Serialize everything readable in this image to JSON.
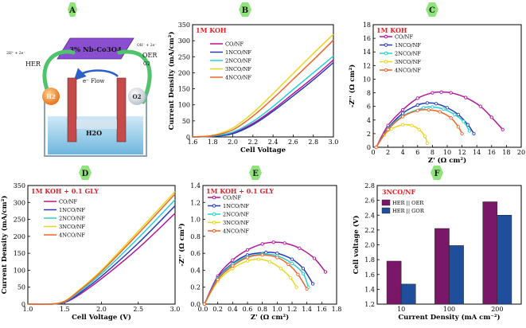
{
  "colors": {
    "series": [
      "#b5139b",
      "#283db5",
      "#25cfd6",
      "#e9d61c",
      "#f0642a"
    ],
    "hexagon": "#8ee37a",
    "bar_oer": "#7b1768",
    "bar_gor": "#1f4f9c",
    "condition": "#e8202a"
  },
  "series_names": [
    "CO/NF",
    "1NCO/NF",
    "2NCO/NF",
    "3NCO/NF",
    "4NCO/NF"
  ],
  "panel_labels": [
    "A",
    "B",
    "C",
    "D",
    "E",
    "F"
  ],
  "schematic": {
    "catalyst": "3% Nb-Co3O4",
    "her": "HER",
    "oer": "OER",
    "eflow": "e⁻ Flow",
    "h2": "H2",
    "o2": "O2",
    "water": "H2O",
    "her_eq": "2H⁺ + 2e⁻",
    "oer_eq": "OH⁻ + 2e⁻",
    "o2_out": "O2"
  },
  "chart_data": [
    {
      "id": "B",
      "type": "line",
      "condition": "1M KOH",
      "xlabel": "Cell Voltage",
      "ylabel": "Current Density (mA/cm²)",
      "xlim": [
        1.6,
        3.0
      ],
      "ylim": [
        0,
        350
      ],
      "xticks": [
        "1.6",
        "1.8",
        "2.0",
        "2.2",
        "2.4",
        "2.6",
        "2.8",
        "3.0"
      ],
      "yticks": [
        "0",
        "50",
        "100",
        "150",
        "200",
        "250",
        "300",
        "350"
      ],
      "series": [
        {
          "name": "CO/NF",
          "x": [
            1.6,
            1.8,
            2.0,
            2.2,
            2.4,
            2.6,
            2.8,
            3.0
          ],
          "y": [
            0,
            2,
            12,
            42,
            85,
            135,
            185,
            240
          ]
        },
        {
          "name": "1NCO/NF",
          "x": [
            1.6,
            1.8,
            2.0,
            2.2,
            2.4,
            2.6,
            2.8,
            3.0
          ],
          "y": [
            0,
            2,
            10,
            38,
            80,
            128,
            178,
            232
          ]
        },
        {
          "name": "2NCO/NF",
          "x": [
            1.6,
            1.8,
            2.0,
            2.2,
            2.4,
            2.6,
            2.8,
            3.0
          ],
          "y": [
            0,
            3,
            15,
            48,
            95,
            148,
            200,
            252
          ]
        },
        {
          "name": "3NCO/NF",
          "x": [
            1.6,
            1.8,
            2.0,
            2.2,
            2.4,
            2.6,
            2.8,
            3.0
          ],
          "y": [
            0,
            5,
            28,
            75,
            135,
            198,
            260,
            320
          ]
        },
        {
          "name": "4NCO/NF",
          "x": [
            1.6,
            1.8,
            2.0,
            2.2,
            2.4,
            2.6,
            2.8,
            3.0
          ],
          "y": [
            0,
            4,
            22,
            65,
            120,
            180,
            240,
            302
          ]
        }
      ]
    },
    {
      "id": "C",
      "type": "scatter",
      "condition": "1M KOH",
      "xlabel": "Z' (Ω cm²)",
      "ylabel": "-Z'' (Ω cm²)",
      "xlim": [
        0,
        20
      ],
      "ylim": [
        0,
        18
      ],
      "xticks": [
        "0",
        "2",
        "4",
        "6",
        "8",
        "10",
        "12",
        "14",
        "16",
        "18",
        "20"
      ],
      "yticks": [
        "0",
        "2",
        "4",
        "6",
        "8",
        "10",
        "12",
        "14",
        "16",
        "18"
      ],
      "series": [
        {
          "name": "CO/NF",
          "x": [
            0.4,
            2,
            4,
            6,
            8,
            9.2,
            10.5,
            12.5,
            14.5,
            16,
            17.5
          ],
          "y": [
            0,
            3.2,
            5.5,
            7.2,
            8.0,
            8.1,
            8.0,
            7.3,
            6.0,
            4.4,
            2.6
          ]
        },
        {
          "name": "1NCO/NF",
          "x": [
            0.4,
            2,
            4,
            6,
            7.3,
            8.5,
            10,
            11.5,
            12.8,
            13.6
          ],
          "y": [
            0,
            2.8,
            5.0,
            6.2,
            6.5,
            6.4,
            5.8,
            4.8,
            3.3,
            2.0
          ]
        },
        {
          "name": "2NCO/NF",
          "x": [
            0.4,
            2,
            4,
            6.8,
            8,
            9.5,
            11,
            12.2,
            13.0
          ],
          "y": [
            0,
            2.7,
            4.6,
            5.8,
            5.9,
            5.6,
            4.8,
            3.8,
            2.4
          ]
        },
        {
          "name": "3NCO/NF",
          "x": [
            0.4,
            1.5,
            2.5,
            4,
            5.2,
            6.2,
            7.0,
            7.3
          ],
          "y": [
            0,
            1.8,
            2.7,
            3.3,
            3.2,
            2.6,
            1.6,
            0.6
          ]
        },
        {
          "name": "4NCO/NF",
          "x": [
            0.4,
            2,
            4,
            6,
            7.5,
            9,
            10.5,
            11.5,
            12.0
          ],
          "y": [
            0,
            2.6,
            4.5,
            5.4,
            5.5,
            5.2,
            4.3,
            3.0,
            2.0
          ]
        }
      ]
    },
    {
      "id": "D",
      "type": "line",
      "condition": "1M KOH + 0.1 GLY",
      "xlabel": "Cell Voltage (V)",
      "ylabel": "Current Density (mA/cm²)",
      "xlim": [
        1.0,
        3.0
      ],
      "ylim": [
        0,
        350
      ],
      "xticks": [
        "1.0",
        "1.5",
        "2.0",
        "2.5",
        "3.0"
      ],
      "yticks": [
        "0",
        "50",
        "100",
        "150",
        "200",
        "250",
        "300",
        "350"
      ],
      "series": [
        {
          "name": "CO/NF",
          "x": [
            1.0,
            1.3,
            1.5,
            1.7,
            2.0,
            2.5,
            3.0
          ],
          "y": [
            0,
            0,
            5,
            28,
            75,
            165,
            268
          ]
        },
        {
          "name": "1NCO/NF",
          "x": [
            1.0,
            1.3,
            1.5,
            1.7,
            2.0,
            2.5,
            3.0
          ],
          "y": [
            0,
            0,
            6,
            32,
            82,
            180,
            290
          ]
        },
        {
          "name": "2NCO/NF",
          "x": [
            1.0,
            1.3,
            1.5,
            1.7,
            2.0,
            2.5,
            3.0
          ],
          "y": [
            0,
            0,
            7,
            36,
            90,
            195,
            308
          ]
        },
        {
          "name": "3NCO/NF",
          "x": [
            1.0,
            1.3,
            1.5,
            1.7,
            2.0,
            2.5,
            3.0
          ],
          "y": [
            0,
            0,
            9,
            42,
            100,
            215,
            332
          ]
        },
        {
          "name": "4NCO/NF",
          "x": [
            1.0,
            1.3,
            1.5,
            1.7,
            2.0,
            2.5,
            3.0
          ],
          "y": [
            0,
            0,
            8,
            40,
            96,
            208,
            325
          ]
        }
      ]
    },
    {
      "id": "E",
      "type": "scatter",
      "condition": "1M KOH + 0.1 GLY",
      "xlabel": "Z' (Ω cm²)",
      "ylabel": "-Z'' (Ω cm²)",
      "xlim": [
        0,
        1.8
      ],
      "ylim": [
        0,
        1.4
      ],
      "xticks": [
        "0.0",
        "0.2",
        "0.4",
        "0.6",
        "0.8",
        "1.0",
        "1.2",
        "1.4",
        "1.6",
        "1.8"
      ],
      "yticks": [
        "0.0",
        "0.2",
        "0.4",
        "0.6",
        "0.8",
        "1.0",
        "1.2",
        "1.4"
      ],
      "series": [
        {
          "name": "CO/NF",
          "x": [
            0.02,
            0.2,
            0.4,
            0.6,
            0.8,
            0.95,
            1.1,
            1.3,
            1.5,
            1.65
          ],
          "y": [
            0,
            0.33,
            0.52,
            0.64,
            0.71,
            0.73,
            0.72,
            0.66,
            0.54,
            0.38
          ]
        },
        {
          "name": "1NCO/NF",
          "x": [
            0.02,
            0.2,
            0.4,
            0.6,
            0.85,
            1.0,
            1.2,
            1.35,
            1.48
          ],
          "y": [
            0,
            0.31,
            0.48,
            0.58,
            0.61,
            0.6,
            0.53,
            0.42,
            0.24
          ]
        },
        {
          "name": "2NCO/NF",
          "x": [
            0.02,
            0.2,
            0.4,
            0.6,
            0.8,
            1.0,
            1.2,
            1.35,
            1.42
          ],
          "y": [
            0,
            0.3,
            0.47,
            0.56,
            0.59,
            0.57,
            0.48,
            0.36,
            0.2
          ]
        },
        {
          "name": "3NCO/NF",
          "x": [
            0.02,
            0.2,
            0.4,
            0.6,
            0.75,
            0.9,
            1.05,
            1.18,
            1.26
          ],
          "y": [
            0,
            0.27,
            0.42,
            0.51,
            0.53,
            0.5,
            0.42,
            0.31,
            0.2
          ]
        },
        {
          "name": "4NCO/NF",
          "x": [
            0.02,
            0.2,
            0.4,
            0.6,
            0.8,
            1.0,
            1.15,
            1.28,
            1.4
          ],
          "y": [
            0,
            0.29,
            0.45,
            0.55,
            0.58,
            0.55,
            0.47,
            0.35,
            0.18
          ]
        }
      ]
    },
    {
      "id": "F",
      "type": "bar",
      "condition": "3NCO/NF",
      "xlabel": "Current Density (mA cm⁻²)",
      "ylabel": "Cell voltage (V)",
      "ylim": [
        1.2,
        2.8
      ],
      "yticks": [
        "1.2",
        "1.4",
        "1.6",
        "1.8",
        "2.0",
        "2.2",
        "2.4",
        "2.6",
        "2.8"
      ],
      "categories": [
        "10",
        "100",
        "200"
      ],
      "series": [
        {
          "name": "HER || OER",
          "values": [
            1.78,
            2.22,
            2.58
          ]
        },
        {
          "name": "HER || GOR",
          "values": [
            1.47,
            1.99,
            2.4
          ]
        }
      ]
    }
  ]
}
